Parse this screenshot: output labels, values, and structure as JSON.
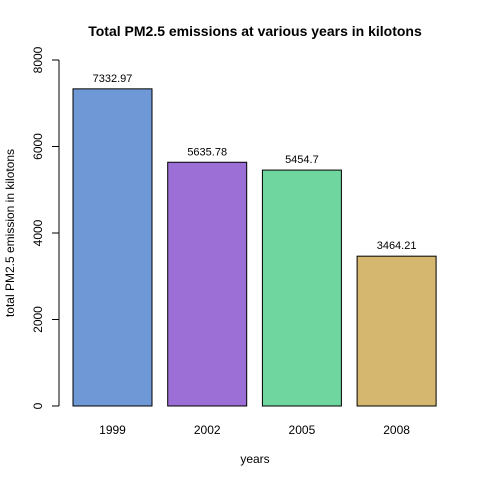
{
  "chart_data": {
    "type": "bar",
    "title": "Total PM2.5 emissions at various years in kilotons",
    "xlabel": "years",
    "ylabel": "total PM2.5 emission in kilotons",
    "categories": [
      "1999",
      "2002",
      "2005",
      "2008"
    ],
    "values": [
      7332.97,
      5635.78,
      5454.7,
      3464.21
    ],
    "data_labels": [
      "7332.97",
      "5635.78",
      "5454.7",
      "3464.21"
    ],
    "colors": [
      "#6f99d6",
      "#9b6fd6",
      "#6fd6a0",
      "#d6b76f"
    ],
    "ylim": [
      0,
      8000
    ],
    "yticks": [
      0,
      2000,
      4000,
      6000,
      8000
    ],
    "ytick_labels": [
      "0",
      "2000",
      "4000",
      "6000",
      "8000"
    ],
    "grid": false,
    "legend": "none"
  }
}
